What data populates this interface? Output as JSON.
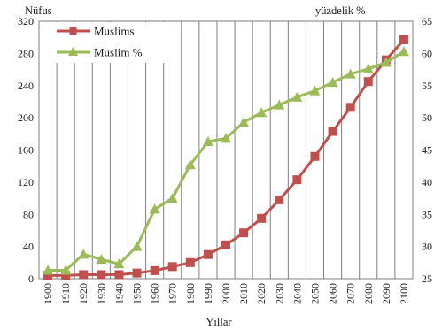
{
  "chart_data": {
    "type": "line",
    "x": [
      "1900",
      "1910",
      "1920",
      "1930",
      "1940",
      "1950",
      "1960",
      "1970",
      "1980",
      "1990",
      "2000",
      "2010",
      "2020",
      "2030",
      "2040",
      "2050",
      "2060",
      "2070",
      "2080",
      "2090",
      "2100"
    ],
    "xlabel": "Yıllar",
    "ylabel_left": "Nüfus",
    "ylabel_right": "yüzdelik %",
    "ylim_left": [
      0,
      320
    ],
    "yticks_left": [
      0,
      40,
      80,
      120,
      160,
      200,
      240,
      280,
      320
    ],
    "ylim_right": [
      25,
      65
    ],
    "yticks_right": [
      25,
      30,
      35,
      40,
      45,
      50,
      55,
      60,
      65
    ],
    "grid": "vertical",
    "legend_position": "top-left",
    "series": [
      {
        "name": "Muslims",
        "axis": "left",
        "color": "#c0504d",
        "marker": "square",
        "values": [
          4,
          4,
          5,
          5,
          5,
          7,
          10,
          15,
          20,
          30,
          42,
          57,
          75,
          98,
          123,
          152,
          183,
          213,
          245,
          272,
          297
        ]
      },
      {
        "name": "Muslim %",
        "axis": "right",
        "color": "#9bbb59",
        "marker": "triangle",
        "values": [
          26.3,
          26.3,
          28.8,
          28.0,
          27.3,
          30.0,
          35.8,
          37.5,
          42.7,
          46.3,
          46.8,
          49.3,
          50.8,
          52.0,
          53.2,
          54.2,
          55.5,
          56.8,
          57.6,
          58.6,
          60.3
        ]
      }
    ]
  }
}
